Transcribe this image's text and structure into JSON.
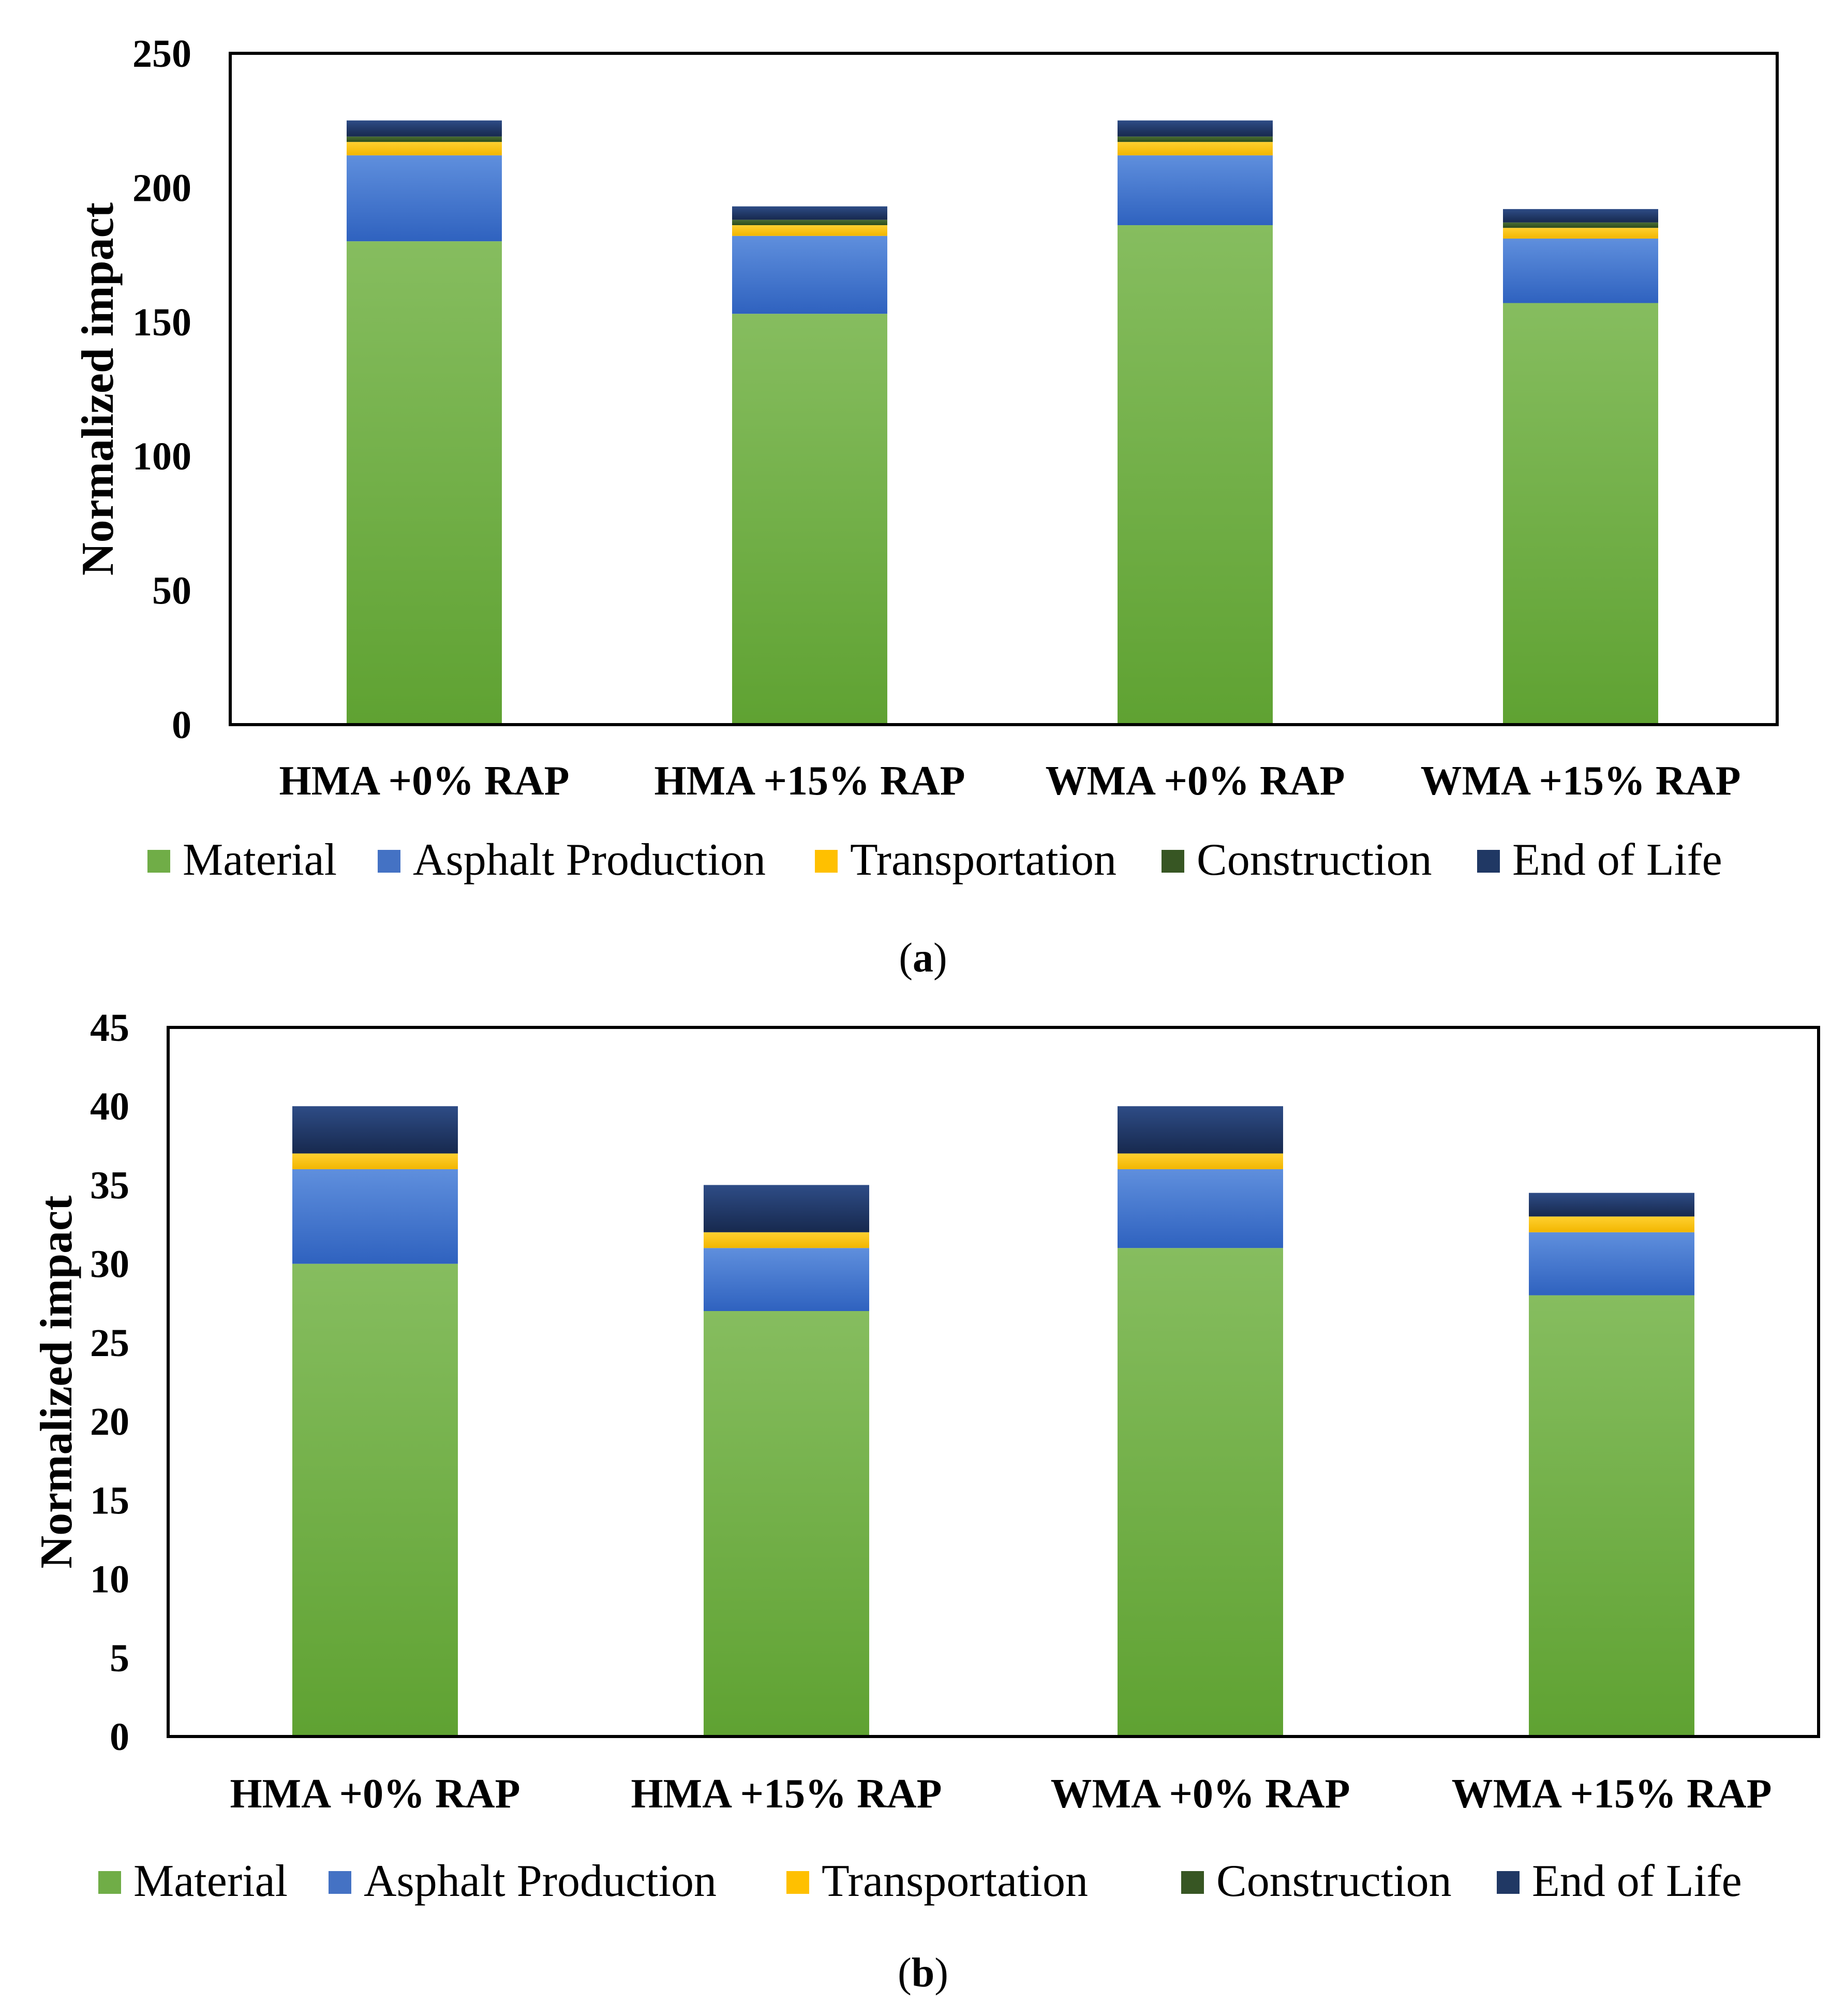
{
  "colors": {
    "Material": "#70AD47",
    "Asphalt Production": "#4472C4",
    "Transportation": "#FFC000",
    "Construction": "#375623",
    "End of Life": "#203864"
  },
  "chart_data": [
    {
      "type": "bar",
      "stacked": true,
      "panel": "a",
      "caption": "a",
      "ylabel": "Normalized impact",
      "ylim": [
        0,
        250
      ],
      "yticks": [
        0,
        50,
        100,
        150,
        200,
        250
      ],
      "categories": [
        "HMA +0% RAP",
        "HMA +15% RAP",
        "WMA +0% RAP",
        "WMA +15% RAP"
      ],
      "series": [
        {
          "name": "Material",
          "values": [
            180,
            153,
            186,
            157
          ]
        },
        {
          "name": "Asphalt Production",
          "values": [
            32,
            29,
            26,
            24
          ]
        },
        {
          "name": "Transportation",
          "values": [
            5,
            4,
            5,
            4
          ]
        },
        {
          "name": "Construction",
          "values": [
            2,
            2,
            2,
            2
          ]
        },
        {
          "name": "End of Life",
          "values": [
            6,
            5,
            6,
            5
          ]
        }
      ],
      "legend": [
        "Material",
        "Asphalt Production",
        "Transportation",
        "Construction",
        "End of Life"
      ]
    },
    {
      "type": "bar",
      "stacked": true,
      "panel": "b",
      "caption": "b",
      "ylabel": "Normalized impact",
      "ylim": [
        0,
        45
      ],
      "yticks": [
        0,
        5,
        10,
        15,
        20,
        25,
        30,
        35,
        40,
        45
      ],
      "categories": [
        "HMA +0% RAP",
        "HMA +15% RAP",
        "WMA +0% RAP",
        "WMA +15% RAP"
      ],
      "series": [
        {
          "name": "Material",
          "values": [
            30,
            27,
            31,
            28
          ]
        },
        {
          "name": "Asphalt Production",
          "values": [
            6,
            4,
            5,
            4
          ]
        },
        {
          "name": "Transportation",
          "values": [
            1,
            1,
            1,
            1
          ]
        },
        {
          "name": "Construction",
          "values": [
            0,
            0,
            0,
            0
          ]
        },
        {
          "name": "End of Life",
          "values": [
            3,
            3,
            3,
            1.5
          ]
        }
      ],
      "legend": [
        "Material",
        "Asphalt Production",
        "Transportation",
        "Construction",
        "End of Life"
      ]
    }
  ]
}
